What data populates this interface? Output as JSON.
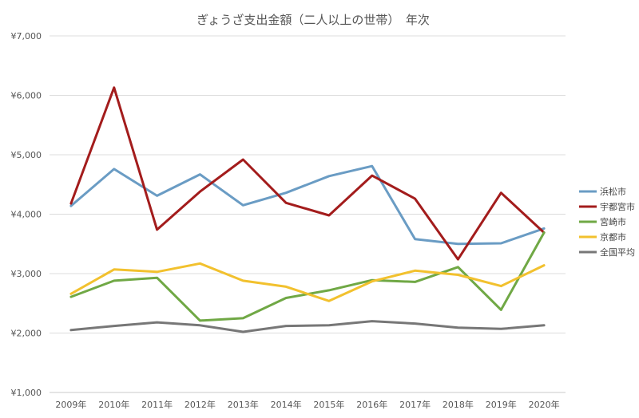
{
  "chart_data": {
    "type": "line",
    "title": "ぎょうざ支出金額（二人以上の世帯）　年次",
    "xlabel": "",
    "ylabel": "",
    "categories": [
      "2009年",
      "2010年",
      "2011年",
      "2012年",
      "2013年",
      "2014年",
      "2015年",
      "2016年",
      "2017年",
      "2018年",
      "2019年",
      "2020年"
    ],
    "ylim": [
      1000,
      7000
    ],
    "yticks": [
      1000,
      2000,
      3000,
      4000,
      5000,
      6000,
      7000
    ],
    "ytick_labels": [
      "¥1,000",
      "¥2,000",
      "¥3,000",
      "¥4,000",
      "¥5,000",
      "¥6,000",
      "¥7,000"
    ],
    "grid": true,
    "legend_position": "right",
    "series": [
      {
        "name": "浜松市",
        "color": "#6a9cc4",
        "values": [
          4140,
          4760,
          4310,
          4670,
          4150,
          4360,
          4640,
          4810,
          3580,
          3500,
          3510,
          3760
        ]
      },
      {
        "name": "宇都宮市",
        "color": "#a31c1c",
        "values": [
          4180,
          6130,
          3740,
          4380,
          4920,
          4190,
          3980,
          4650,
          4260,
          3240,
          4360,
          3690
        ]
      },
      {
        "name": "宮崎市",
        "color": "#70a845",
        "values": [
          2610,
          2880,
          2930,
          2210,
          2250,
          2590,
          2720,
          2890,
          2860,
          3110,
          2390,
          3690
        ]
      },
      {
        "name": "京都市",
        "color": "#f2c12e",
        "values": [
          2660,
          3070,
          3030,
          3170,
          2880,
          2780,
          2540,
          2870,
          3050,
          2980,
          2790,
          3140
        ]
      },
      {
        "name": "全国平均",
        "color": "#777777",
        "values": [
          2050,
          2120,
          2180,
          2130,
          2020,
          2120,
          2130,
          2200,
          2160,
          2090,
          2070,
          2130
        ]
      }
    ]
  }
}
